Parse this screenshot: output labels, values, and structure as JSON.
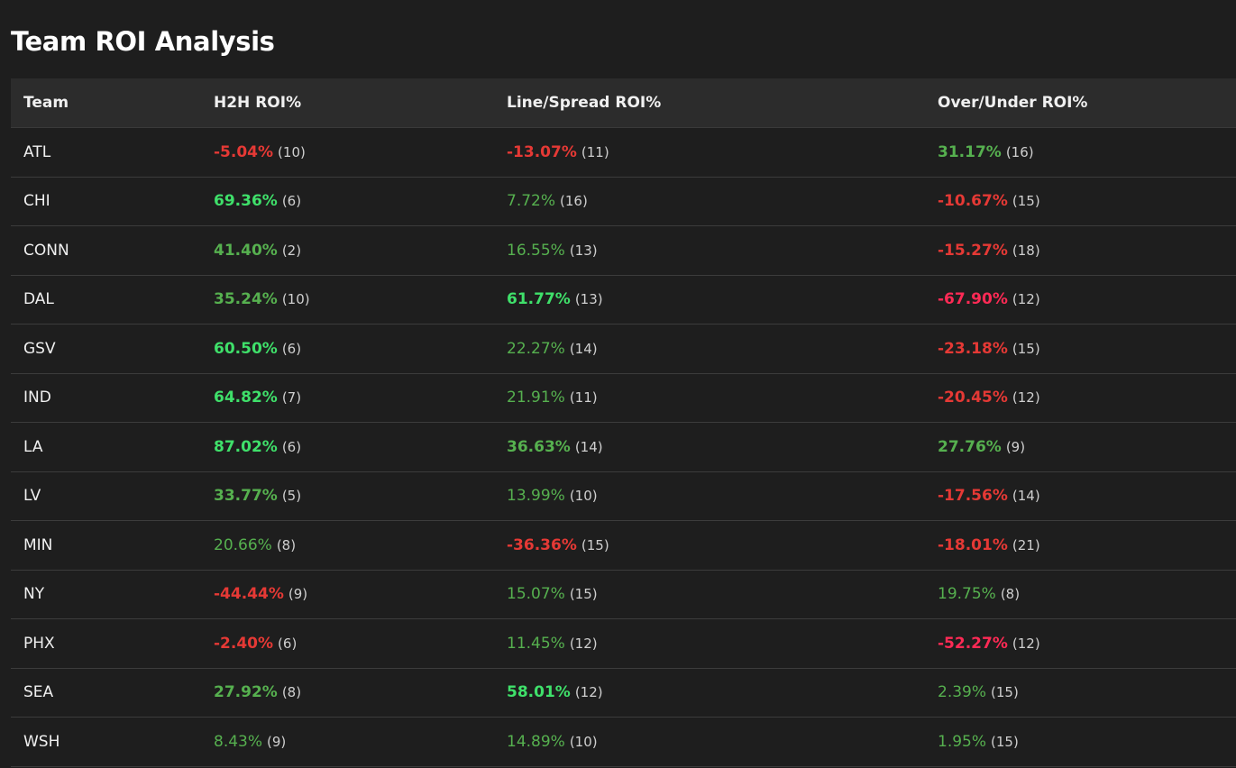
{
  "title": "Team ROI Analysis",
  "columns": [
    "Team",
    "H2H ROI%",
    "Line/Spread ROI%",
    "Over/Under ROI%"
  ],
  "colors": {
    "background": "#1e1e1e",
    "header_bg": "#2c2c2c",
    "positive": "#56b04f",
    "positive_strong": "#3fe06a",
    "negative": "#e53935",
    "negative_strong": "#ff2a55"
  },
  "rows": [
    {
      "team": "ATL",
      "h2h": {
        "pct": "-5.04%",
        "count": "(10)",
        "tone": "neg-med"
      },
      "line": {
        "pct": "-13.07%",
        "count": "(11)",
        "tone": "neg-med"
      },
      "ou": {
        "pct": "31.17%",
        "count": "(16)",
        "tone": "pos-med"
      }
    },
    {
      "team": "CHI",
      "h2h": {
        "pct": "69.36%",
        "count": "(6)",
        "tone": "pos-strong"
      },
      "line": {
        "pct": "7.72%",
        "count": "(16)",
        "tone": "pos-weak"
      },
      "ou": {
        "pct": "-10.67%",
        "count": "(15)",
        "tone": "neg-med"
      }
    },
    {
      "team": "CONN",
      "h2h": {
        "pct": "41.40%",
        "count": "(2)",
        "tone": "pos-med"
      },
      "line": {
        "pct": "16.55%",
        "count": "(13)",
        "tone": "pos-weak"
      },
      "ou": {
        "pct": "-15.27%",
        "count": "(18)",
        "tone": "neg-med"
      }
    },
    {
      "team": "DAL",
      "h2h": {
        "pct": "35.24%",
        "count": "(10)",
        "tone": "pos-med"
      },
      "line": {
        "pct": "61.77%",
        "count": "(13)",
        "tone": "pos-strong"
      },
      "ou": {
        "pct": "-67.90%",
        "count": "(12)",
        "tone": "neg-strong"
      }
    },
    {
      "team": "GSV",
      "h2h": {
        "pct": "60.50%",
        "count": "(6)",
        "tone": "pos-strong"
      },
      "line": {
        "pct": "22.27%",
        "count": "(14)",
        "tone": "pos-weak"
      },
      "ou": {
        "pct": "-23.18%",
        "count": "(15)",
        "tone": "neg-med"
      }
    },
    {
      "team": "IND",
      "h2h": {
        "pct": "64.82%",
        "count": "(7)",
        "tone": "pos-strong"
      },
      "line": {
        "pct": "21.91%",
        "count": "(11)",
        "tone": "pos-weak"
      },
      "ou": {
        "pct": "-20.45%",
        "count": "(12)",
        "tone": "neg-med"
      }
    },
    {
      "team": "LA",
      "h2h": {
        "pct": "87.02%",
        "count": "(6)",
        "tone": "pos-strong"
      },
      "line": {
        "pct": "36.63%",
        "count": "(14)",
        "tone": "pos-med"
      },
      "ou": {
        "pct": "27.76%",
        "count": "(9)",
        "tone": "pos-med"
      }
    },
    {
      "team": "LV",
      "h2h": {
        "pct": "33.77%",
        "count": "(5)",
        "tone": "pos-med"
      },
      "line": {
        "pct": "13.99%",
        "count": "(10)",
        "tone": "pos-weak"
      },
      "ou": {
        "pct": "-17.56%",
        "count": "(14)",
        "tone": "neg-med"
      }
    },
    {
      "team": "MIN",
      "h2h": {
        "pct": "20.66%",
        "count": "(8)",
        "tone": "pos-weak"
      },
      "line": {
        "pct": "-36.36%",
        "count": "(15)",
        "tone": "neg-med"
      },
      "ou": {
        "pct": "-18.01%",
        "count": "(21)",
        "tone": "neg-med"
      }
    },
    {
      "team": "NY",
      "h2h": {
        "pct": "-44.44%",
        "count": "(9)",
        "tone": "neg-med"
      },
      "line": {
        "pct": "15.07%",
        "count": "(15)",
        "tone": "pos-weak"
      },
      "ou": {
        "pct": "19.75%",
        "count": "(8)",
        "tone": "pos-weak"
      }
    },
    {
      "team": "PHX",
      "h2h": {
        "pct": "-2.40%",
        "count": "(6)",
        "tone": "neg-med"
      },
      "line": {
        "pct": "11.45%",
        "count": "(12)",
        "tone": "pos-weak"
      },
      "ou": {
        "pct": "-52.27%",
        "count": "(12)",
        "tone": "neg-strong"
      }
    },
    {
      "team": "SEA",
      "h2h": {
        "pct": "27.92%",
        "count": "(8)",
        "tone": "pos-med"
      },
      "line": {
        "pct": "58.01%",
        "count": "(12)",
        "tone": "pos-strong"
      },
      "ou": {
        "pct": "2.39%",
        "count": "(15)",
        "tone": "pos-weak"
      }
    },
    {
      "team": "WSH",
      "h2h": {
        "pct": "8.43%",
        "count": "(9)",
        "tone": "pos-weak"
      },
      "line": {
        "pct": "14.89%",
        "count": "(10)",
        "tone": "pos-weak"
      },
      "ou": {
        "pct": "1.95%",
        "count": "(15)",
        "tone": "pos-weak"
      }
    }
  ]
}
